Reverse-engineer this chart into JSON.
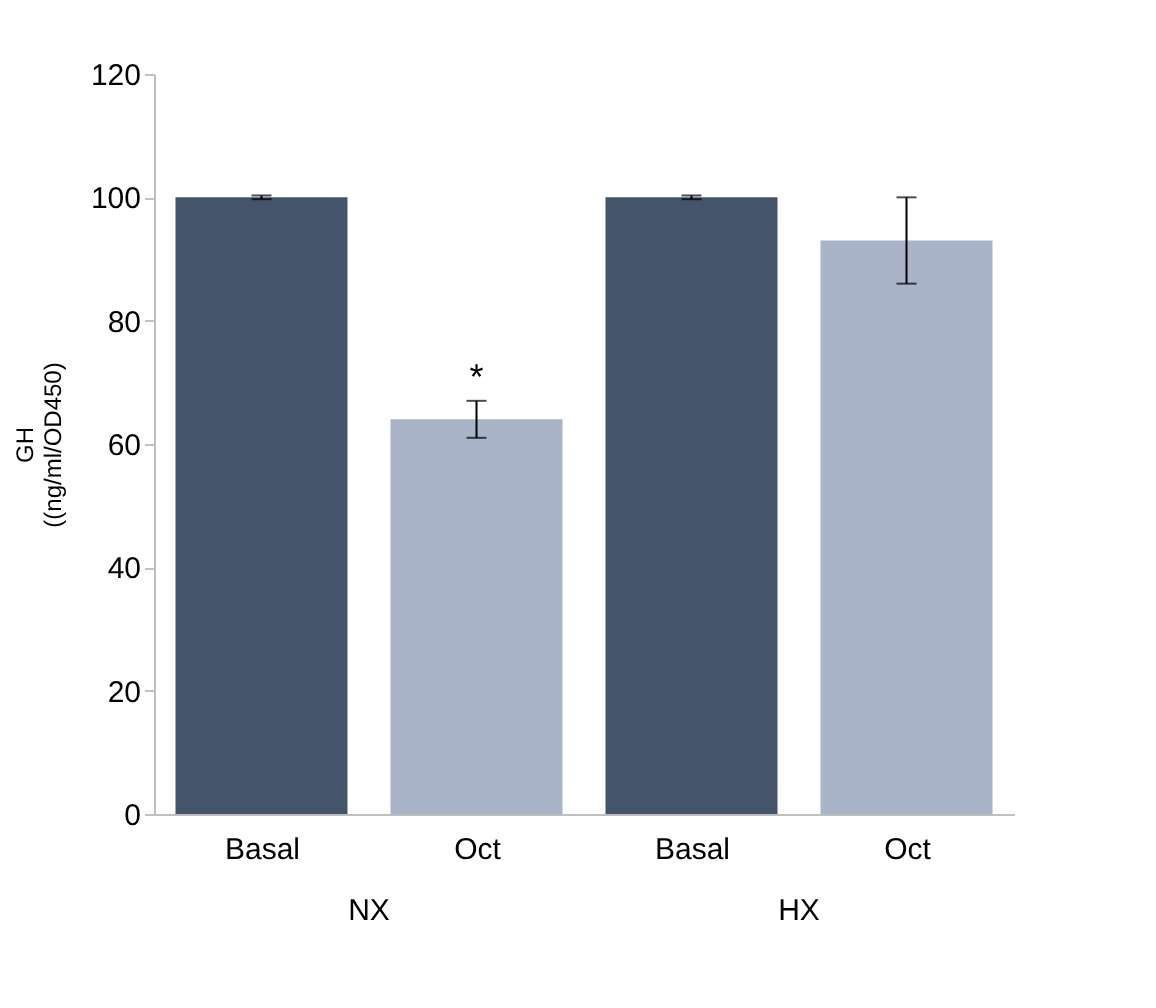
{
  "chart_data": {
    "type": "bar",
    "categories": [
      "Basal",
      "Oct",
      "Basal",
      "Oct"
    ],
    "values": [
      100,
      64,
      100,
      93
    ],
    "colors": [
      "#44546a",
      "#a9b4c9",
      "#44546a",
      "#a9b4c9"
    ],
    "errors": [
      0.3,
      3,
      0.3,
      7
    ],
    "ylabel": "GH\n((ng/ml/OD450)",
    "ylim": [
      0,
      120
    ],
    "yticks": [
      0,
      20,
      40,
      60,
      80,
      100,
      120
    ],
    "grid": false,
    "legend": false,
    "value_labels": [
      null,
      "*",
      null,
      null
    ],
    "annotations": [
      "NX",
      "HX"
    ]
  }
}
